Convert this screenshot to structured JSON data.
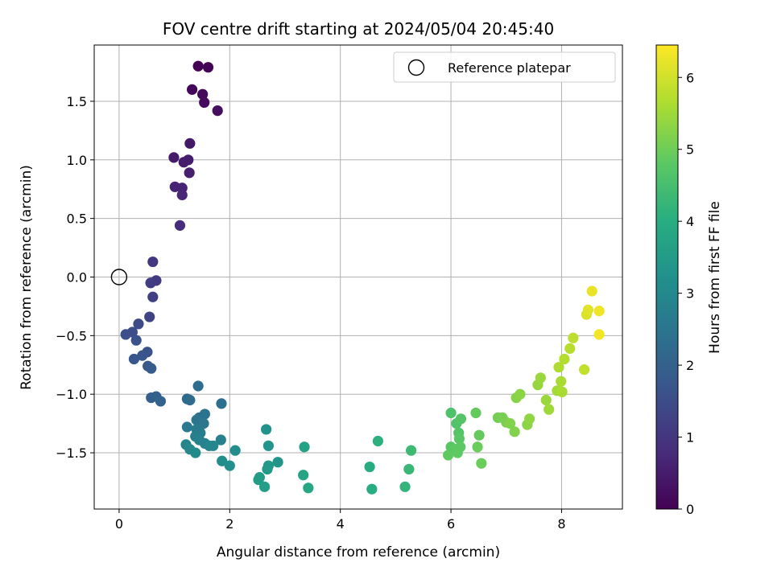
{
  "chart_data": {
    "type": "scatter",
    "title": "FOV centre drift starting at 2024/05/04 20:45:40",
    "xlabel": "Angular distance from reference (arcmin)",
    "ylabel": "Rotation from reference (arcmin)",
    "xlim": [
      -0.45,
      9.1
    ],
    "ylim": [
      -1.98,
      1.98
    ],
    "xticks": [
      0,
      2,
      4,
      6,
      8
    ],
    "xtick_labels": [
      "0",
      "2",
      "4",
      "6",
      "8"
    ],
    "yticks": [
      -1.5,
      -1.0,
      -0.5,
      0.0,
      0.5,
      1.0,
      1.5
    ],
    "ytick_labels": [
      "−1.5",
      "−1.0",
      "−0.5",
      "0.0",
      "0.5",
      "1.0",
      "1.5"
    ],
    "grid": true,
    "legend": {
      "position": "top-right",
      "entries": [
        "Reference platepar"
      ]
    },
    "reference_point": {
      "x": 0.0,
      "y": 0.0
    },
    "colorbar": {
      "label": "Hours from first FF file",
      "range": [
        0,
        6.45
      ],
      "ticks": [
        0,
        1,
        2,
        3,
        4,
        5,
        6
      ],
      "tick_labels": [
        "0",
        "1",
        "2",
        "3",
        "4",
        "5",
        "6"
      ],
      "colormap": "viridis"
    },
    "points": [
      {
        "x": 1.43,
        "y": 1.8,
        "c": 0.0
      },
      {
        "x": 1.61,
        "y": 1.79,
        "c": 0.05
      },
      {
        "x": 1.32,
        "y": 1.6,
        "c": 0.1
      },
      {
        "x": 1.51,
        "y": 1.56,
        "c": 0.15
      },
      {
        "x": 1.54,
        "y": 1.49,
        "c": 0.2
      },
      {
        "x": 1.78,
        "y": 1.42,
        "c": 0.25
      },
      {
        "x": 1.28,
        "y": 1.14,
        "c": 0.4
      },
      {
        "x": 0.99,
        "y": 1.02,
        "c": 0.45
      },
      {
        "x": 1.17,
        "y": 0.98,
        "c": 0.5
      },
      {
        "x": 1.25,
        "y": 1.0,
        "c": 0.5
      },
      {
        "x": 1.27,
        "y": 0.89,
        "c": 0.55
      },
      {
        "x": 1.01,
        "y": 0.77,
        "c": 0.65
      },
      {
        "x": 1.14,
        "y": 0.76,
        "c": 0.65
      },
      {
        "x": 1.14,
        "y": 0.7,
        "c": 0.7
      },
      {
        "x": 1.1,
        "y": 0.44,
        "c": 0.8
      },
      {
        "x": 0.61,
        "y": 0.13,
        "c": 1.05
      },
      {
        "x": 0.67,
        "y": -0.03,
        "c": 1.1
      },
      {
        "x": 0.57,
        "y": -0.05,
        "c": 1.15
      },
      {
        "x": 0.61,
        "y": -0.17,
        "c": 1.2
      },
      {
        "x": 0.55,
        "y": -0.34,
        "c": 1.3
      },
      {
        "x": 0.35,
        "y": -0.4,
        "c": 1.45
      },
      {
        "x": 0.24,
        "y": -0.47,
        "c": 1.5
      },
      {
        "x": 0.12,
        "y": -0.49,
        "c": 1.55
      },
      {
        "x": 0.31,
        "y": -0.54,
        "c": 1.6
      },
      {
        "x": 0.51,
        "y": -0.64,
        "c": 1.65
      },
      {
        "x": 0.42,
        "y": -0.67,
        "c": 1.7
      },
      {
        "x": 0.27,
        "y": -0.7,
        "c": 1.75
      },
      {
        "x": 0.52,
        "y": -0.76,
        "c": 1.8
      },
      {
        "x": 0.58,
        "y": -0.78,
        "c": 1.85
      },
      {
        "x": 0.58,
        "y": -1.03,
        "c": 1.95
      },
      {
        "x": 0.67,
        "y": -1.02,
        "c": 2.0
      },
      {
        "x": 0.75,
        "y": -1.06,
        "c": 2.05
      },
      {
        "x": 1.23,
        "y": -1.04,
        "c": 2.2
      },
      {
        "x": 1.28,
        "y": -1.05,
        "c": 2.25
      },
      {
        "x": 1.43,
        "y": -0.93,
        "c": 2.3
      },
      {
        "x": 1.85,
        "y": -1.08,
        "c": 2.35
      },
      {
        "x": 1.45,
        "y": -1.2,
        "c": 2.4
      },
      {
        "x": 1.55,
        "y": -1.17,
        "c": 2.45
      },
      {
        "x": 1.4,
        "y": -1.22,
        "c": 2.5
      },
      {
        "x": 1.53,
        "y": -1.25,
        "c": 2.55
      },
      {
        "x": 1.23,
        "y": -1.28,
        "c": 2.6
      },
      {
        "x": 1.4,
        "y": -1.3,
        "c": 2.65
      },
      {
        "x": 1.47,
        "y": -1.33,
        "c": 2.7
      },
      {
        "x": 1.38,
        "y": -1.36,
        "c": 2.75
      },
      {
        "x": 1.84,
        "y": -1.39,
        "c": 2.8
      },
      {
        "x": 1.45,
        "y": -1.39,
        "c": 2.8
      },
      {
        "x": 1.55,
        "y": -1.42,
        "c": 2.85
      },
      {
        "x": 1.63,
        "y": -1.44,
        "c": 2.9
      },
      {
        "x": 1.21,
        "y": -1.43,
        "c": 2.9
      },
      {
        "x": 1.7,
        "y": -1.44,
        "c": 2.95
      },
      {
        "x": 1.28,
        "y": -1.47,
        "c": 3.0
      },
      {
        "x": 1.38,
        "y": -1.5,
        "c": 3.05
      },
      {
        "x": 2.1,
        "y": -1.48,
        "c": 3.1
      },
      {
        "x": 1.86,
        "y": -1.57,
        "c": 3.15
      },
      {
        "x": 2.0,
        "y": -1.61,
        "c": 3.2
      },
      {
        "x": 2.66,
        "y": -1.3,
        "c": 3.25
      },
      {
        "x": 2.7,
        "y": -1.44,
        "c": 3.3
      },
      {
        "x": 2.87,
        "y": -1.58,
        "c": 3.35
      },
      {
        "x": 2.7,
        "y": -1.61,
        "c": 3.4
      },
      {
        "x": 2.68,
        "y": -1.64,
        "c": 3.45
      },
      {
        "x": 2.54,
        "y": -1.71,
        "c": 3.5
      },
      {
        "x": 2.52,
        "y": -1.73,
        "c": 3.55
      },
      {
        "x": 2.63,
        "y": -1.79,
        "c": 3.6
      },
      {
        "x": 3.35,
        "y": -1.45,
        "c": 3.7
      },
      {
        "x": 3.33,
        "y": -1.69,
        "c": 3.75
      },
      {
        "x": 3.42,
        "y": -1.8,
        "c": 3.8
      },
      {
        "x": 4.53,
        "y": -1.62,
        "c": 3.95
      },
      {
        "x": 4.57,
        "y": -1.81,
        "c": 4.0
      },
      {
        "x": 4.68,
        "y": -1.4,
        "c": 4.1
      },
      {
        "x": 5.17,
        "y": -1.79,
        "c": 4.2
      },
      {
        "x": 5.24,
        "y": -1.64,
        "c": 4.3
      },
      {
        "x": 5.28,
        "y": -1.48,
        "c": 4.35
      },
      {
        "x": 6.0,
        "y": -1.16,
        "c": 4.6
      },
      {
        "x": 6.1,
        "y": -1.25,
        "c": 4.65
      },
      {
        "x": 6.18,
        "y": -1.21,
        "c": 4.7
      },
      {
        "x": 6.14,
        "y": -1.33,
        "c": 4.7
      },
      {
        "x": 6.15,
        "y": -1.38,
        "c": 4.75
      },
      {
        "x": 6.0,
        "y": -1.45,
        "c": 4.75
      },
      {
        "x": 6.1,
        "y": -1.47,
        "c": 4.8
      },
      {
        "x": 6.17,
        "y": -1.45,
        "c": 4.8
      },
      {
        "x": 6.12,
        "y": -1.5,
        "c": 4.85
      },
      {
        "x": 5.95,
        "y": -1.52,
        "c": 4.85
      },
      {
        "x": 6.45,
        "y": -1.16,
        "c": 4.9
      },
      {
        "x": 6.51,
        "y": -1.35,
        "c": 4.9
      },
      {
        "x": 6.48,
        "y": -1.45,
        "c": 4.95
      },
      {
        "x": 6.55,
        "y": -1.59,
        "c": 4.95
      },
      {
        "x": 6.85,
        "y": -1.2,
        "c": 5.05
      },
      {
        "x": 6.93,
        "y": -1.2,
        "c": 5.1
      },
      {
        "x": 7.0,
        "y": -1.24,
        "c": 5.15
      },
      {
        "x": 7.07,
        "y": -1.25,
        "c": 5.2
      },
      {
        "x": 7.15,
        "y": -1.32,
        "c": 5.2
      },
      {
        "x": 7.18,
        "y": -1.03,
        "c": 5.25
      },
      {
        "x": 7.25,
        "y": -1.0,
        "c": 5.3
      },
      {
        "x": 7.38,
        "y": -1.26,
        "c": 5.3
      },
      {
        "x": 7.42,
        "y": -1.21,
        "c": 5.35
      },
      {
        "x": 7.57,
        "y": -0.92,
        "c": 5.4
      },
      {
        "x": 7.62,
        "y": -0.86,
        "c": 5.45
      },
      {
        "x": 7.72,
        "y": -1.05,
        "c": 5.45
      },
      {
        "x": 7.77,
        "y": -1.13,
        "c": 5.5
      },
      {
        "x": 7.92,
        "y": -0.97,
        "c": 5.55
      },
      {
        "x": 8.01,
        "y": -0.98,
        "c": 5.6
      },
      {
        "x": 7.99,
        "y": -0.89,
        "c": 5.6
      },
      {
        "x": 7.95,
        "y": -0.77,
        "c": 5.65
      },
      {
        "x": 8.05,
        "y": -0.7,
        "c": 5.7
      },
      {
        "x": 8.15,
        "y": -0.61,
        "c": 5.75
      },
      {
        "x": 8.21,
        "y": -0.52,
        "c": 5.8
      },
      {
        "x": 8.41,
        "y": -0.79,
        "c": 5.85
      },
      {
        "x": 8.45,
        "y": -0.32,
        "c": 6.1
      },
      {
        "x": 8.48,
        "y": -0.28,
        "c": 6.15
      },
      {
        "x": 8.55,
        "y": -0.12,
        "c": 6.25
      },
      {
        "x": 8.68,
        "y": -0.29,
        "c": 6.3
      },
      {
        "x": 8.68,
        "y": -0.49,
        "c": 6.35
      }
    ]
  }
}
